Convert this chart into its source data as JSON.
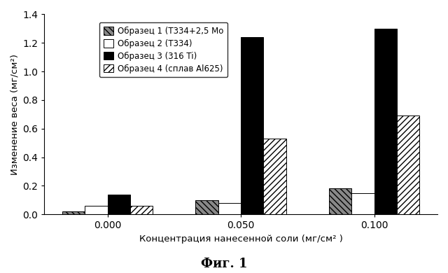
{
  "groups": [
    "0.000",
    "0.050",
    "0.100"
  ],
  "group_positions": [
    0,
    1,
    2
  ],
  "series": [
    {
      "label": "Образец 1 (Т334+2,5 Mo",
      "values": [
        0.02,
        0.1,
        0.18
      ],
      "hatch": "\\\\\\\\",
      "facecolor": "#888888",
      "edgecolor": "#000000"
    },
    {
      "label": "Образец 2 (Т334)",
      "values": [
        0.06,
        0.08,
        0.15
      ],
      "hatch": "",
      "facecolor": "#ffffff",
      "edgecolor": "#000000"
    },
    {
      "label": "Образец 3 (316 Ti)",
      "values": [
        0.14,
        1.24,
        1.3
      ],
      "hatch": "",
      "facecolor": "#000000",
      "edgecolor": "#000000"
    },
    {
      "label": "Образец 4 (сплав Al625)",
      "values": [
        0.06,
        0.53,
        0.69
      ],
      "hatch": "////",
      "facecolor": "#ffffff",
      "edgecolor": "#000000"
    }
  ],
  "ylabel": "Изменение веса (мг/см²)",
  "xlabel": "Концентрация нанесенной соли (мг/см² )",
  "figure_label": "Фиг. 1",
  "ylim": [
    0,
    1.4
  ],
  "yticks": [
    0.0,
    0.2,
    0.4,
    0.6,
    0.8,
    1.0,
    1.2,
    1.4
  ],
  "bar_width": 0.17,
  "figsize": [
    6.4,
    3.9
  ],
  "dpi": 100
}
